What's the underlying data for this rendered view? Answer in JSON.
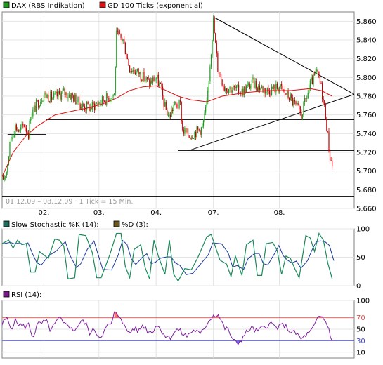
{
  "colors": {
    "border": "#808080",
    "grid": "#e4e4e4",
    "up": "#1a9a1a",
    "down": "#c00000",
    "gd": "#dd1111",
    "stoch_k": "#1a8a5a",
    "stoch_d": "#1a3aa0",
    "rsi_line": "#8020a0",
    "overbought": "#ff6060",
    "oversold": "#6060ff",
    "stoch_legend": "#1e6b5c",
    "d_legend": "#6b5a1e",
    "rsi_legend": "#7a1a8a"
  },
  "legend": {
    "dax": "DAX (RBS Indikation)",
    "gd": "GD 100 Ticks (exponential)"
  },
  "stoch_legend": {
    "k": "Slow Stochastic %K (14):",
    "d": "%D (3):"
  },
  "rsi_legend": {
    "label": "RSI (14):"
  },
  "period_label": "01.12.09 – 08.12.09 · 1 Tick = 15 Min.",
  "chart_data": [
    {
      "type": "candlestick",
      "series": [
        {
          "name": "DAX (RBS Indikation)",
          "kind": "candles"
        },
        {
          "name": "GD 100 Ticks (exponential)",
          "kind": "line"
        }
      ],
      "x_ticks": [
        "02.",
        "03.",
        "04.",
        "07.",
        "08."
      ],
      "y_ticks": [
        "5.860",
        "5.840",
        "5.820",
        "5.800",
        "5.780",
        "5.760",
        "5.740",
        "5.720",
        "5.700",
        "5.680",
        "5.660"
      ],
      "ylim": [
        5660,
        5870
      ],
      "grid": true,
      "legend": "top-left",
      "close_path": [
        [
          0,
          5690
        ],
        [
          4,
          5700
        ],
        [
          8,
          5735
        ],
        [
          12,
          5748
        ],
        [
          16,
          5742
        ],
        [
          20,
          5750
        ],
        [
          24,
          5740
        ],
        [
          26,
          5760
        ],
        [
          32,
          5772
        ],
        [
          38,
          5782
        ],
        [
          46,
          5778
        ],
        [
          56,
          5784
        ],
        [
          64,
          5780
        ],
        [
          72,
          5770
        ],
        [
          80,
          5768
        ],
        [
          92,
          5776
        ],
        [
          102,
          5782
        ],
        [
          104,
          5845
        ],
        [
          110,
          5840
        ],
        [
          116,
          5810
        ],
        [
          124,
          5805
        ],
        [
          134,
          5794
        ],
        [
          140,
          5800
        ],
        [
          144,
          5790
        ],
        [
          148,
          5768
        ],
        [
          152,
          5758
        ],
        [
          156,
          5770
        ],
        [
          162,
          5770
        ],
        [
          164,
          5744
        ],
        [
          170,
          5738
        ],
        [
          176,
          5742
        ],
        [
          182,
          5746
        ],
        [
          186,
          5770
        ],
        [
          192,
          5860
        ],
        [
          196,
          5810
        ],
        [
          202,
          5790
        ],
        [
          210,
          5788
        ],
        [
          218,
          5785
        ],
        [
          228,
          5794
        ],
        [
          240,
          5786
        ],
        [
          252,
          5790
        ],
        [
          262,
          5778
        ],
        [
          272,
          5760
        ],
        [
          280,
          5792
        ],
        [
          286,
          5805
        ],
        [
          290,
          5790
        ],
        [
          294,
          5760
        ],
        [
          298,
          5715
        ],
        [
          300,
          5706
        ]
      ],
      "gd_path": [
        [
          0,
          5694
        ],
        [
          10,
          5720
        ],
        [
          22,
          5738
        ],
        [
          32,
          5748
        ],
        [
          48,
          5760
        ],
        [
          64,
          5764
        ],
        [
          80,
          5768
        ],
        [
          92,
          5772
        ],
        [
          104,
          5778
        ],
        [
          116,
          5786
        ],
        [
          128,
          5790
        ],
        [
          140,
          5791
        ],
        [
          160,
          5780
        ],
        [
          172,
          5776
        ],
        [
          186,
          5774
        ],
        [
          200,
          5780
        ],
        [
          222,
          5784
        ],
        [
          242,
          5786
        ],
        [
          262,
          5786
        ],
        [
          280,
          5788
        ],
        [
          290,
          5786
        ],
        [
          300,
          5780
        ]
      ],
      "lines": [
        {
          "name": "resistance-trend",
          "from": [
            193,
            5864
          ],
          "to": [
            320,
            5782
          ]
        },
        {
          "name": "support-trend",
          "from": [
            170,
            5722
          ],
          "to": [
            320,
            5782
          ]
        },
        {
          "name": "support-5754",
          "from": [
            40,
            5755
          ],
          "to": [
            320,
            5755
          ]
        },
        {
          "name": "support-5722",
          "from": [
            160,
            5722
          ],
          "to": [
            320,
            5722
          ]
        },
        {
          "name": "support-5673",
          "from": [
            0,
            5673
          ],
          "to": [
            320,
            5673
          ]
        },
        {
          "name": "support-left",
          "from": [
            5,
            5739
          ],
          "to": [
            40,
            5739
          ]
        }
      ]
    },
    {
      "type": "line",
      "series": [
        {
          "name": "Slow Stochastic %K (14)"
        },
        {
          "name": "%D (3)"
        }
      ],
      "y_ticks": [
        "100",
        "50",
        "0"
      ],
      "ylim": [
        0,
        100
      ],
      "grid": true,
      "k_path": [
        [
          0,
          74
        ],
        [
          6,
          80
        ],
        [
          10,
          66
        ],
        [
          14,
          80
        ],
        [
          18,
          72
        ],
        [
          22,
          74
        ],
        [
          26,
          24
        ],
        [
          30,
          24
        ],
        [
          34,
          60
        ],
        [
          38,
          54
        ],
        [
          42,
          48
        ],
        [
          48,
          82
        ],
        [
          52,
          80
        ],
        [
          56,
          70
        ],
        [
          60,
          12
        ],
        [
          66,
          14
        ],
        [
          70,
          90
        ],
        [
          76,
          88
        ],
        [
          82,
          58
        ],
        [
          86,
          14
        ],
        [
          90,
          14
        ],
        [
          98,
          55
        ],
        [
          104,
          92
        ],
        [
          108,
          92
        ],
        [
          112,
          34
        ],
        [
          116,
          14
        ],
        [
          120,
          64
        ],
        [
          126,
          72
        ],
        [
          130,
          32
        ],
        [
          134,
          12
        ],
        [
          138,
          80
        ],
        [
          142,
          52
        ],
        [
          148,
          20
        ],
        [
          152,
          80
        ],
        [
          156,
          20
        ],
        [
          160,
          8
        ],
        [
          166,
          30
        ],
        [
          172,
          28
        ],
        [
          178,
          50
        ],
        [
          186,
          86
        ],
        [
          190,
          90
        ],
        [
          198,
          45
        ],
        [
          204,
          38
        ],
        [
          208,
          16
        ],
        [
          212,
          52
        ],
        [
          218,
          18
        ],
        [
          222,
          72
        ],
        [
          228,
          80
        ],
        [
          232,
          18
        ],
        [
          236,
          18
        ],
        [
          240,
          74
        ],
        [
          246,
          76
        ],
        [
          250,
          62
        ],
        [
          254,
          20
        ],
        [
          258,
          52
        ],
        [
          262,
          48
        ],
        [
          266,
          30
        ],
        [
          270,
          14
        ],
        [
          276,
          88
        ],
        [
          280,
          84
        ],
        [
          284,
          60
        ],
        [
          288,
          92
        ],
        [
          292,
          80
        ],
        [
          296,
          40
        ],
        [
          300,
          12
        ]
      ]
    },
    {
      "type": "line",
      "series": [
        {
          "name": "RSI (14)"
        }
      ],
      "y_ticks": [
        "100",
        "70",
        "50",
        "30",
        "10"
      ],
      "ylim": [
        0,
        100
      ],
      "grid": true,
      "levels": [
        70,
        30
      ],
      "rsi_path": [
        [
          0,
          58
        ],
        [
          4,
          70
        ],
        [
          8,
          52
        ],
        [
          12,
          64
        ],
        [
          16,
          58
        ],
        [
          20,
          54
        ],
        [
          24,
          58
        ],
        [
          28,
          36
        ],
        [
          32,
          58
        ],
        [
          36,
          60
        ],
        [
          40,
          64
        ],
        [
          44,
          48
        ],
        [
          48,
          58
        ],
        [
          52,
          70
        ],
        [
          56,
          58
        ],
        [
          60,
          60
        ],
        [
          64,
          46
        ],
        [
          68,
          54
        ],
        [
          72,
          64
        ],
        [
          76,
          60
        ],
        [
          80,
          42
        ],
        [
          84,
          50
        ],
        [
          88,
          36
        ],
        [
          92,
          44
        ],
        [
          96,
          56
        ],
        [
          100,
          60
        ],
        [
          102,
          78
        ],
        [
          106,
          74
        ],
        [
          108,
          72
        ],
        [
          112,
          50
        ],
        [
          116,
          44
        ],
        [
          120,
          52
        ],
        [
          124,
          46
        ],
        [
          128,
          58
        ],
        [
          132,
          48
        ],
        [
          136,
          44
        ],
        [
          140,
          58
        ],
        [
          144,
          50
        ],
        [
          148,
          40
        ],
        [
          152,
          34
        ],
        [
          156,
          44
        ],
        [
          160,
          50
        ],
        [
          164,
          42
        ],
        [
          168,
          38
        ],
        [
          172,
          46
        ],
        [
          176,
          48
        ],
        [
          180,
          40
        ],
        [
          184,
          52
        ],
        [
          188,
          66
        ],
        [
          192,
          74
        ],
        [
          196,
          76
        ],
        [
          198,
          70
        ],
        [
          202,
          52
        ],
        [
          206,
          48
        ],
        [
          210,
          30
        ],
        [
          214,
          25
        ],
        [
          218,
          34
        ],
        [
          222,
          44
        ],
        [
          226,
          52
        ],
        [
          232,
          46
        ],
        [
          238,
          54
        ],
        [
          244,
          60
        ],
        [
          250,
          52
        ],
        [
          256,
          58
        ],
        [
          262,
          46
        ],
        [
          268,
          42
        ],
        [
          272,
          32
        ],
        [
          276,
          40
        ],
        [
          280,
          44
        ],
        [
          284,
          56
        ],
        [
          288,
          72
        ],
        [
          292,
          70
        ],
        [
          296,
          56
        ],
        [
          300,
          30
        ]
      ]
    }
  ]
}
